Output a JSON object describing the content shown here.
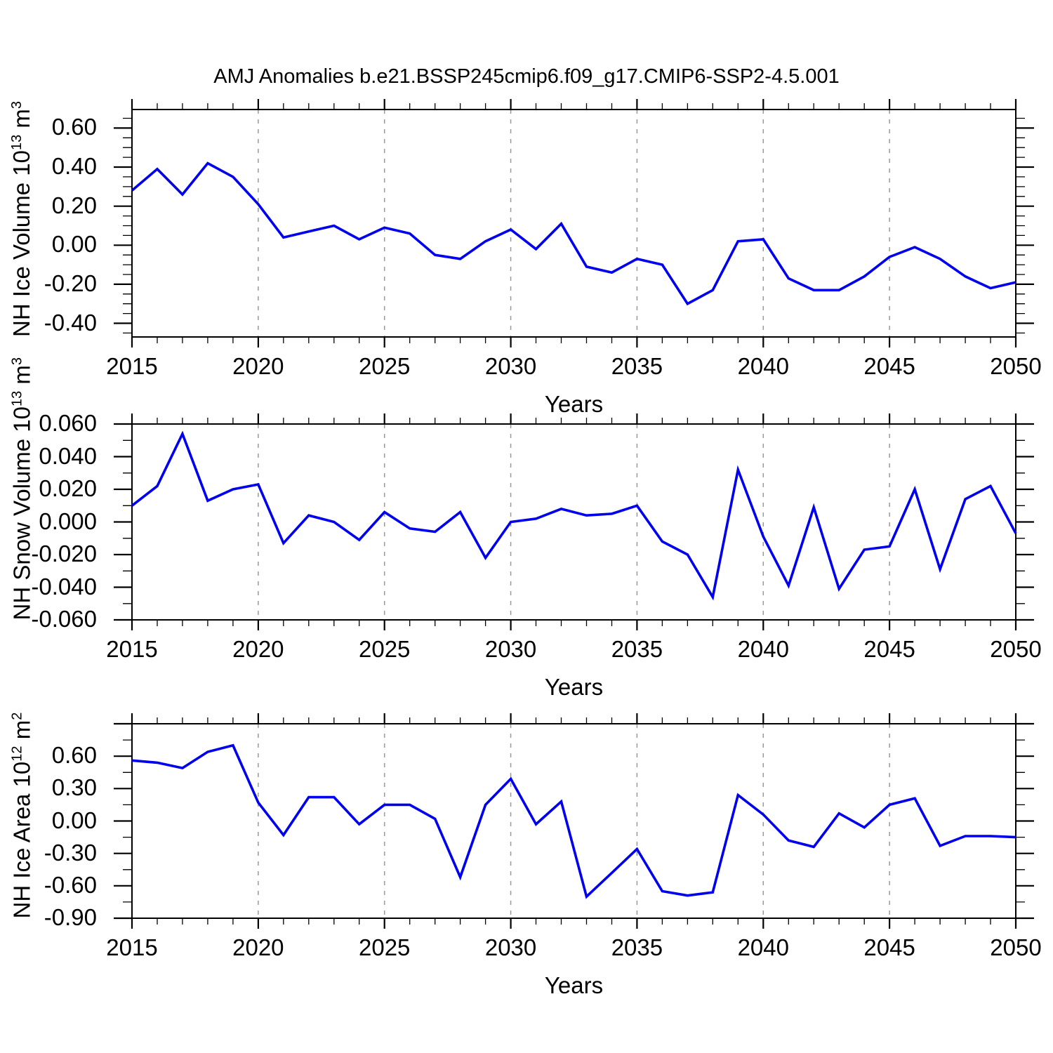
{
  "title": "AMJ Anomalies b.e21.BSSP245cmip6.f09_g17.CMIP6-SSP2-4.5.001",
  "colors": {
    "line": "#0000ee",
    "axis": "#000000",
    "grid": "#999999",
    "background": "#ffffff"
  },
  "years": [
    2015,
    2016,
    2017,
    2018,
    2019,
    2020,
    2021,
    2022,
    2023,
    2024,
    2025,
    2026,
    2027,
    2028,
    2029,
    2030,
    2031,
    2032,
    2033,
    2034,
    2035,
    2036,
    2037,
    2038,
    2039,
    2040,
    2041,
    2042,
    2043,
    2044,
    2045,
    2046,
    2047,
    2048,
    2049,
    2050
  ],
  "xticks": [
    2015,
    2020,
    2025,
    2030,
    2035,
    2040,
    2045,
    2050
  ],
  "xtick_labels": [
    "2015",
    "2020",
    "2025",
    "2030",
    "2035",
    "2040",
    "2045",
    "2050"
  ],
  "grid_x": [
    2020,
    2025,
    2030,
    2035,
    2040,
    2045
  ],
  "chart_data": [
    {
      "type": "line",
      "name": "nh-ice-volume",
      "ylabel": "NH Ice Volume 10^13 m^3",
      "xlabel": "Years",
      "ylim": [
        -0.47,
        0.695
      ],
      "ytick_minor_step": 0.05,
      "yticks": [
        {
          "v": 0.6,
          "label": "0.60"
        },
        {
          "v": 0.4,
          "label": "0.40"
        },
        {
          "v": 0.2,
          "label": "0.20"
        },
        {
          "v": 0.0,
          "label": "0.00"
        },
        {
          "v": -0.2,
          "label": "-0.20"
        },
        {
          "v": -0.4,
          "label": "-0.40"
        }
      ],
      "yticks_unlabeled": [],
      "values": [
        0.28,
        0.39,
        0.26,
        0.42,
        0.35,
        0.21,
        0.04,
        0.07,
        0.1,
        0.03,
        0.09,
        0.06,
        -0.05,
        -0.07,
        0.02,
        0.08,
        -0.02,
        0.11,
        -0.11,
        -0.14,
        -0.07,
        -0.1,
        -0.3,
        -0.23,
        0.02,
        0.03,
        -0.17,
        -0.23,
        -0.23,
        -0.16,
        -0.06,
        -0.01,
        -0.07,
        -0.16,
        -0.22,
        -0.19
      ]
    },
    {
      "type": "line",
      "name": "nh-snow-volume",
      "ylabel": "NH Snow Volume 10^13 m^3",
      "xlabel": "Years",
      "ylim": [
        -0.06,
        0.06
      ],
      "ytick_minor_step": 0.01,
      "yticks": [
        {
          "v": 0.06,
          "label": "0.060"
        },
        {
          "v": 0.04,
          "label": "0.040"
        },
        {
          "v": 0.02,
          "label": "0.020"
        },
        {
          "v": 0.0,
          "label": "0.000"
        },
        {
          "v": -0.02,
          "label": "-0.020"
        },
        {
          "v": -0.04,
          "label": "-0.040"
        },
        {
          "v": -0.06,
          "label": "-0.060"
        }
      ],
      "yticks_unlabeled": [],
      "values": [
        0.01,
        0.022,
        0.054,
        0.013,
        0.02,
        0.023,
        -0.013,
        0.004,
        0.0,
        -0.011,
        0.006,
        -0.004,
        -0.006,
        0.006,
        -0.022,
        0.0,
        0.002,
        0.008,
        0.004,
        0.005,
        0.01,
        -0.012,
        -0.02,
        -0.046,
        0.032,
        -0.009,
        -0.039,
        0.009,
        -0.041,
        -0.017,
        -0.015,
        0.02,
        -0.029,
        0.014,
        0.022,
        -0.007
      ]
    },
    {
      "type": "line",
      "name": "nh-ice-area",
      "ylabel": "NH Ice Area 10^12 m^2",
      "xlabel": "Years",
      "ylim": [
        -0.9,
        0.9
      ],
      "ytick_minor_step": 0.15,
      "yticks": [
        {
          "v": 0.6,
          "label": "0.60"
        },
        {
          "v": 0.3,
          "label": "0.30"
        },
        {
          "v": 0.0,
          "label": "0.00"
        },
        {
          "v": -0.3,
          "label": "-0.30"
        },
        {
          "v": -0.6,
          "label": "-0.60"
        },
        {
          "v": -0.9,
          "label": "-0.90"
        }
      ],
      "yticks_unlabeled": [
        0.9
      ],
      "values": [
        0.56,
        0.54,
        0.49,
        0.64,
        0.7,
        0.17,
        -0.13,
        0.22,
        0.22,
        -0.03,
        0.15,
        0.15,
        0.02,
        -0.52,
        0.15,
        0.39,
        -0.03,
        0.18,
        -0.7,
        -0.48,
        -0.26,
        -0.65,
        -0.69,
        -0.66,
        0.24,
        0.06,
        -0.18,
        -0.24,
        0.07,
        -0.06,
        0.15,
        0.21,
        -0.23,
        -0.14,
        -0.14,
        -0.15
      ]
    }
  ]
}
